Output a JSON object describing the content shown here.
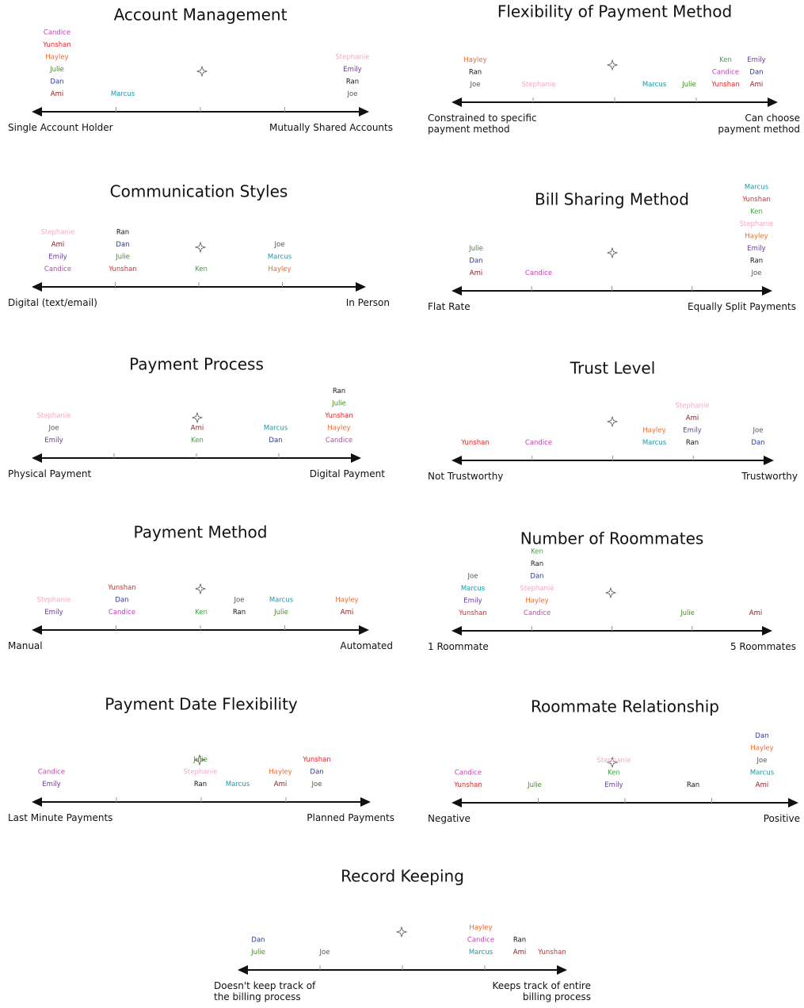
{
  "panels": [
    {
      "title": "Account Management",
      "left": [
        "Single Account Holder"
      ],
      "right": [
        "Mutually Shared Accounts"
      ],
      "groups": [
        [
          {
            "name": "Candice",
            "color": "#c23fb5"
          },
          {
            "name": "Yunshan",
            "color": "#e0262b"
          },
          {
            "name": "Hayley",
            "color": "#f26b2a"
          },
          {
            "name": "Julie",
            "color": "#4a8a2a"
          },
          {
            "name": "Dan",
            "color": "#2b3a8c"
          },
          {
            "name": "Ami",
            "color": "#8b1a1a"
          }
        ],
        [
          {
            "name": "Marcus",
            "color": "#1a9aa8"
          }
        ],
        [
          {
            "name": "Stephanie",
            "color": "#f4a8c8"
          },
          {
            "name": "Emily",
            "color": "#6a3a9a"
          },
          {
            "name": "Ran",
            "color": "#111111"
          },
          {
            "name": "Joe",
            "color": "#555555"
          }
        ]
      ]
    },
    {
      "title": "Flexibility of Payment Method",
      "left": [
        "Constrained to specific",
        "payment method"
      ],
      "right": [
        "Can choose",
        "payment method"
      ],
      "groups": [
        [
          {
            "name": "Hayley",
            "color": "#f26b2a"
          },
          {
            "name": "Ran",
            "color": "#111111"
          },
          {
            "name": "Joe",
            "color": "#555555"
          }
        ],
        [
          {
            "name": "Stephanie",
            "color": "#f4a8c8"
          }
        ],
        [
          {
            "name": "Marcus",
            "color": "#1a9aa8"
          }
        ],
        [
          {
            "name": "Julie",
            "color": "#4a8a2a"
          }
        ],
        [
          {
            "name": "Ken",
            "color": "#3aa83a"
          },
          {
            "name": "Candice",
            "color": "#c23fb5"
          },
          {
            "name": "Yunshan",
            "color": "#e0262b"
          }
        ],
        [
          {
            "name": "Emily",
            "color": "#6a3a9a"
          },
          {
            "name": "Dan",
            "color": "#2b3a8c"
          },
          {
            "name": "Ami",
            "color": "#8b1a1a"
          }
        ]
      ]
    },
    {
      "title": "Communication Styles",
      "left": [
        "Digital (text/email)"
      ],
      "right": [
        "In Person"
      ],
      "groups": [
        [
          {
            "name": "Stephanie",
            "color": "#f4a8c8"
          },
          {
            "name": "Ami",
            "color": "#8b1a1a"
          },
          {
            "name": "Emily",
            "color": "#6a3a9a"
          },
          {
            "name": "Candice",
            "color": "#c23fb5"
          }
        ],
        [
          {
            "name": "Ran",
            "color": "#111111"
          },
          {
            "name": "Dan",
            "color": "#2b3a8c"
          },
          {
            "name": "Julie",
            "color": "#4a8a2a"
          },
          {
            "name": "Yunshan",
            "color": "#e0262b"
          }
        ],
        [
          {
            "name": "Ken",
            "color": "#3aa83a"
          }
        ],
        [
          {
            "name": "Joe",
            "color": "#555555"
          },
          {
            "name": "Marcus",
            "color": "#1a9aa8"
          },
          {
            "name": "Hayley",
            "color": "#f26b2a"
          }
        ]
      ]
    },
    {
      "title": "Bill Sharing Method",
      "left": [
        "Flat Rate"
      ],
      "right": [
        "Equally Split Payments"
      ],
      "groups": [
        [
          {
            "name": "Julie",
            "color": "#4a8a2a"
          },
          {
            "name": "Dan",
            "color": "#2b3a8c"
          },
          {
            "name": "Ami",
            "color": "#8b1a1a"
          }
        ],
        [
          {
            "name": "Candice",
            "color": "#c23fb5"
          }
        ],
        [
          {
            "name": "Marcus",
            "color": "#1a9aa8"
          },
          {
            "name": "Yunshan",
            "color": "#e0262b"
          },
          {
            "name": "Ken",
            "color": "#3aa83a"
          },
          {
            "name": "Stephanie",
            "color": "#f4a8c8"
          },
          {
            "name": "Hayley",
            "color": "#f26b2a"
          },
          {
            "name": "Emily",
            "color": "#6a3a9a"
          },
          {
            "name": "Ran",
            "color": "#111111"
          },
          {
            "name": "Joe",
            "color": "#555555"
          }
        ]
      ]
    },
    {
      "title": "Payment Process",
      "left": [
        "Physical Payment"
      ],
      "right": [
        "Digital Payment"
      ],
      "groups": [
        [
          {
            "name": "Stephanie",
            "color": "#f4a8c8"
          },
          {
            "name": "Joe",
            "color": "#555555"
          },
          {
            "name": "Emily",
            "color": "#6a3a9a"
          }
        ],
        [
          {
            "name": "Ami",
            "color": "#8b1a1a"
          },
          {
            "name": "Ken",
            "color": "#3aa83a"
          }
        ],
        [
          {
            "name": "Marcus",
            "color": "#1a9aa8"
          },
          {
            "name": "Dan",
            "color": "#2b3a8c"
          }
        ],
        [
          {
            "name": "Ran",
            "color": "#111111"
          },
          {
            "name": "Julie",
            "color": "#4a8a2a"
          },
          {
            "name": "Yunshan",
            "color": "#e0262b"
          },
          {
            "name": "Hayley",
            "color": "#f26b2a"
          },
          {
            "name": "Candice",
            "color": "#c23fb5"
          }
        ]
      ]
    },
    {
      "title": "Trust Level",
      "left": [
        "Not Trustworthy"
      ],
      "right": [
        "Trustworthy"
      ],
      "groups": [
        [
          {
            "name": "Yunshan",
            "color": "#e0262b"
          }
        ],
        [
          {
            "name": "Candice",
            "color": "#c23fb5"
          }
        ],
        [
          {
            "name": "Hayley",
            "color": "#f26b2a"
          },
          {
            "name": "Marcus",
            "color": "#1a9aa8"
          }
        ],
        [
          {
            "name": "Stephanie",
            "color": "#f4a8c8"
          },
          {
            "name": "Ami",
            "color": "#8b1a1a"
          },
          {
            "name": "Emily",
            "color": "#6a3a9a"
          },
          {
            "name": "Ran",
            "color": "#111111"
          }
        ],
        [
          {
            "name": "Joe",
            "color": "#555555"
          },
          {
            "name": "Dan",
            "color": "#2b3a8c"
          }
        ]
      ]
    },
    {
      "title": "Payment Method",
      "left": [
        "Manual"
      ],
      "right": [
        "Automated"
      ],
      "groups": [
        [
          {
            "name": "Stephanie",
            "color": "#f4a8c8"
          },
          {
            "name": "Emily",
            "color": "#6a3a9a"
          }
        ],
        [
          {
            "name": "Yunshan",
            "color": "#e0262b"
          },
          {
            "name": "Dan",
            "color": "#2b3a8c"
          },
          {
            "name": "Candice",
            "color": "#c23fb5"
          }
        ],
        [
          {
            "name": "Ken",
            "color": "#3aa83a"
          }
        ],
        [
          {
            "name": "Joe",
            "color": "#555555"
          },
          {
            "name": "Ran",
            "color": "#111111"
          }
        ],
        [
          {
            "name": "Marcus",
            "color": "#1a9aa8"
          },
          {
            "name": "Julie",
            "color": "#4a8a2a"
          }
        ],
        [
          {
            "name": "Hayley",
            "color": "#f26b2a"
          },
          {
            "name": "Ami",
            "color": "#8b1a1a"
          }
        ]
      ]
    },
    {
      "title": "Number of Roommates",
      "left": [
        "1 Roommate"
      ],
      "right": [
        "5 Roommates"
      ],
      "groups": [
        [
          {
            "name": "Joe",
            "color": "#555555"
          },
          {
            "name": "Marcus",
            "color": "#1a9aa8"
          },
          {
            "name": "Emily",
            "color": "#6a3a9a"
          },
          {
            "name": "Yunshan",
            "color": "#e0262b"
          }
        ],
        [
          {
            "name": "Ken",
            "color": "#3aa83a"
          },
          {
            "name": "Ran",
            "color": "#111111"
          },
          {
            "name": "Dan",
            "color": "#2b3a8c"
          },
          {
            "name": "Stephanie",
            "color": "#f4a8c8"
          },
          {
            "name": "Hayley",
            "color": "#f26b2a"
          },
          {
            "name": "Candice",
            "color": "#c23fb5"
          }
        ],
        [
          {
            "name": "Julie",
            "color": "#4a8a2a"
          }
        ],
        [
          {
            "name": "Ami",
            "color": "#8b1a1a"
          }
        ]
      ]
    },
    {
      "title": "Payment Date Flexibility",
      "left": [
        "Last Minute Payments"
      ],
      "right": [
        "Planned Payments"
      ],
      "groups": [
        [
          {
            "name": "Candice",
            "color": "#c23fb5"
          },
          {
            "name": "Emily",
            "color": "#6a3a9a"
          }
        ],
        [
          {
            "name": "Julie",
            "color": "#4a8a2a"
          },
          {
            "name": "Stephanie",
            "color": "#f4a8c8"
          },
          {
            "name": "Ran",
            "color": "#111111"
          }
        ],
        [
          {
            "name": "Marcus",
            "color": "#1a9aa8"
          }
        ],
        [
          {
            "name": "Hayley",
            "color": "#f26b2a"
          },
          {
            "name": "Ami",
            "color": "#8b1a1a"
          }
        ],
        [
          {
            "name": "Yunshan",
            "color": "#e0262b"
          },
          {
            "name": "Dan",
            "color": "#2b3a8c"
          },
          {
            "name": "Joe",
            "color": "#555555"
          }
        ]
      ]
    },
    {
      "title": "Roommate Relationship",
      "left": [
        "Negative"
      ],
      "right": [
        "Positive"
      ],
      "groups": [
        [
          {
            "name": "Candice",
            "color": "#c23fb5"
          },
          {
            "name": "Yunshan",
            "color": "#e0262b"
          }
        ],
        [
          {
            "name": "Julie",
            "color": "#4a8a2a"
          }
        ],
        [
          {
            "name": "Stephanie",
            "color": "#f4a8c8"
          },
          {
            "name": "Ken",
            "color": "#3aa83a"
          },
          {
            "name": "Emily",
            "color": "#6a3a9a"
          }
        ],
        [
          {
            "name": "Ran",
            "color": "#111111"
          }
        ],
        [
          {
            "name": "Dan",
            "color": "#2b3a8c"
          },
          {
            "name": "Hayley",
            "color": "#f26b2a"
          },
          {
            "name": "Joe",
            "color": "#555555"
          },
          {
            "name": "Marcus",
            "color": "#1a9aa8"
          },
          {
            "name": "Ami",
            "color": "#8b1a1a"
          }
        ]
      ]
    },
    {
      "title": "Record Keeping",
      "left": [
        "Doesn't keep track of",
        "the billing process"
      ],
      "right": [
        "Keeps track of entire",
        "billing process"
      ],
      "groups": [
        [
          {
            "name": "Dan",
            "color": "#2b3a8c"
          },
          {
            "name": "Julie",
            "color": "#4a8a2a"
          }
        ],
        [
          {
            "name": "Joe",
            "color": "#555555"
          }
        ],
        [
          {
            "name": "Hayley",
            "color": "#f26b2a"
          },
          {
            "name": "Candice",
            "color": "#c23fb5"
          },
          {
            "name": "Marcus",
            "color": "#1a9aa8"
          }
        ],
        [
          {
            "name": "Ran",
            "color": "#111111"
          },
          {
            "name": "Ami",
            "color": "#8b1a1a"
          }
        ],
        [
          {
            "name": "Yunshan",
            "color": "#e0262b"
          }
        ]
      ]
    }
  ]
}
